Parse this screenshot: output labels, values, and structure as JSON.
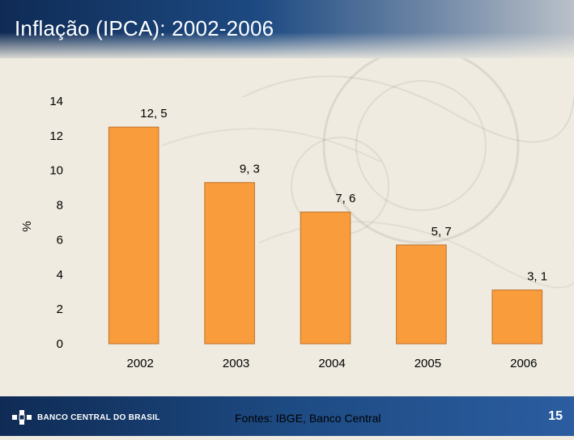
{
  "slide": {
    "title": "Inflação (IPCA): 2002-2006",
    "source": "Fontes: IBGE, Banco Central",
    "logo_text": "BANCO CENTRAL DO BRASIL",
    "page_number": "15"
  },
  "colors": {
    "bar_fill": "#f99c3b",
    "bar_stroke": "#c0702a",
    "header_dark": "#0f2b55",
    "footer_blue": "#1d4a82"
  },
  "chart_data": {
    "type": "bar",
    "title": "Inflação (IPCA): 2002-2006",
    "xlabel": "",
    "ylabel": "%",
    "categories": [
      "2002",
      "2003",
      "2004",
      "2005",
      "2006"
    ],
    "values": [
      12.5,
      9.3,
      7.6,
      5.7,
      3.1
    ],
    "value_labels": [
      "12, 5",
      "9, 3",
      "7, 6",
      "5, 7",
      "3, 1"
    ],
    "ylim": [
      0,
      14
    ],
    "yticks": [
      0,
      2,
      4,
      6,
      8,
      10,
      12,
      14
    ],
    "grid": false,
    "legend": "none"
  }
}
